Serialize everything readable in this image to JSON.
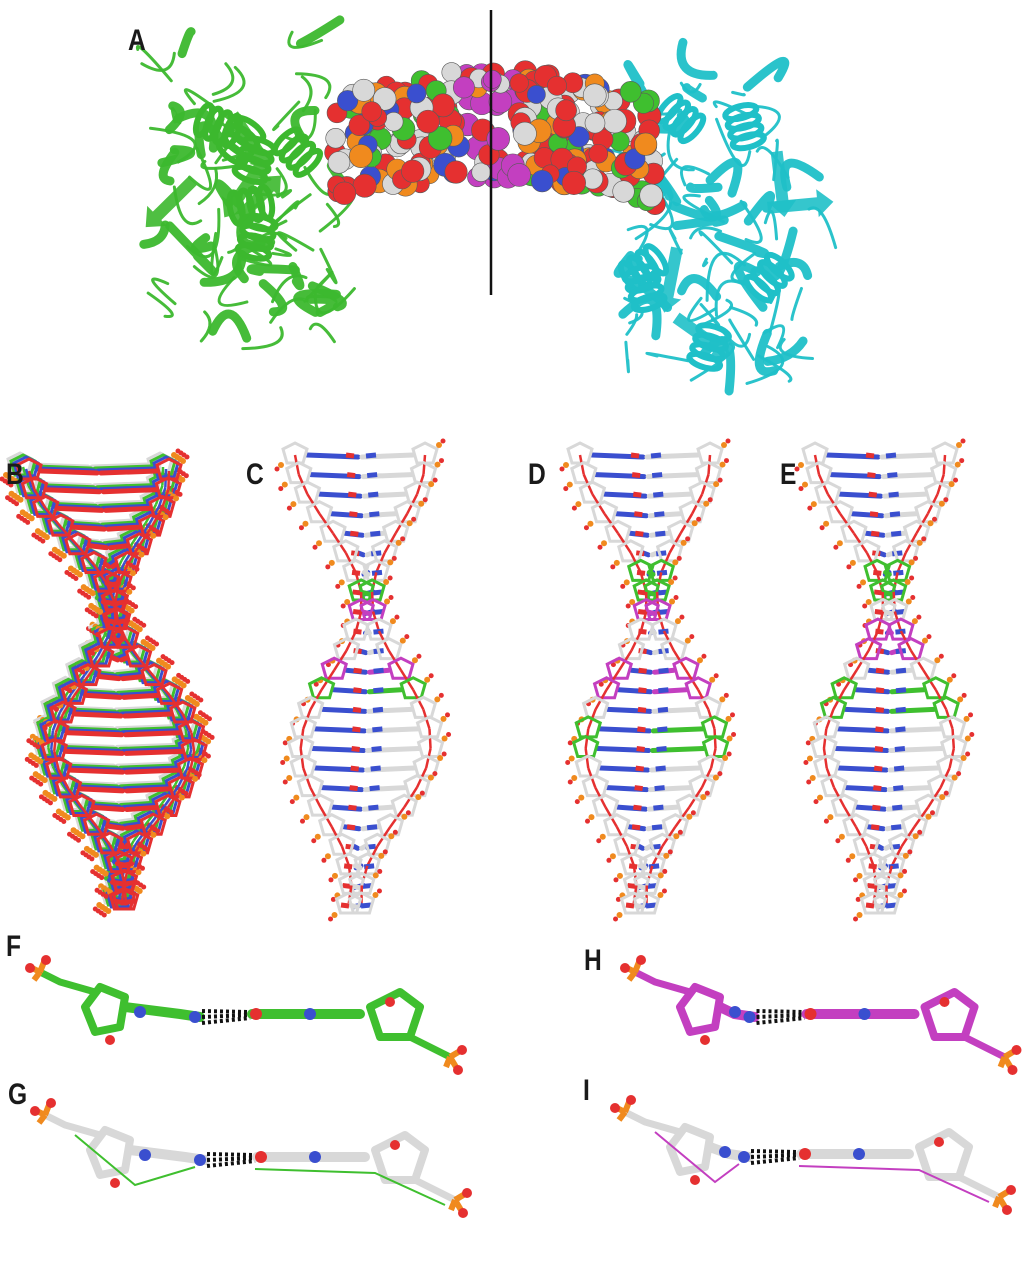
{
  "figure": {
    "panels": [
      {
        "label": "A",
        "content": "protein-dna-complex"
      },
      {
        "label": "B",
        "content": "overlaid-dna-helices"
      },
      {
        "label": "C",
        "content": "dna-helix-stick-model"
      },
      {
        "label": "D",
        "content": "dna-helix-stick-model"
      },
      {
        "label": "E",
        "content": "dna-helix-stick-model"
      },
      {
        "label": "F",
        "content": "base-pair-closeup"
      },
      {
        "label": "G",
        "content": "base-pair-overlay"
      },
      {
        "label": "H",
        "content": "base-pair-closeup"
      },
      {
        "label": "I",
        "content": "base-pair-overlay"
      }
    ],
    "colors": {
      "protein_left": "#3cb82e",
      "protein_right": "#1fc0c8",
      "oxygen": "#e53030",
      "nitrogen": "#3a4fcf",
      "carbon": "#d8d8d8",
      "phosphorus": "#f08a1e",
      "highlight_green": "#3fbf2f",
      "highlight_magenta": "#c33fc0",
      "hbond": "#111111"
    }
  }
}
